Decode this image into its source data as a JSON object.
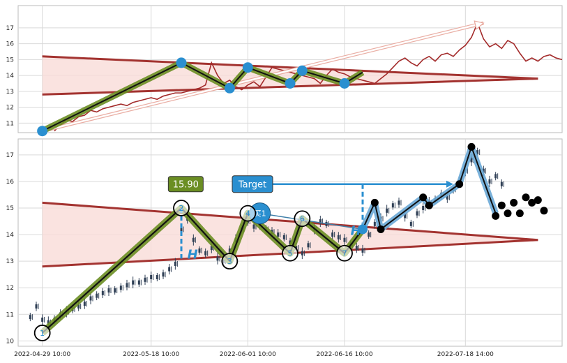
{
  "chart_data": [
    {
      "type": "line",
      "panel": "overview",
      "ylim": [
        10.4,
        18.4
      ],
      "yticks": [
        11,
        12,
        13,
        14,
        15,
        16,
        17
      ],
      "x_range": [
        -2,
        88
      ],
      "grid": true,
      "colors": {
        "price": "#a32a2a",
        "wedge_fill": "#f9dcd8",
        "wedge_line": "#a33330",
        "zigzag_outer": "#6b8e23",
        "zigzag_inner": "#111111",
        "pivot": "#2a8fd0",
        "arrow": "#e8a79c"
      },
      "price_series": [
        [
          4,
          10.5
        ],
        [
          5,
          10.9
        ],
        [
          6,
          11.2
        ],
        [
          7,
          11.1
        ],
        [
          8,
          11.4
        ],
        [
          9,
          11.5
        ],
        [
          10,
          11.8
        ],
        [
          11,
          11.7
        ],
        [
          12,
          11.9
        ],
        [
          13,
          12.0
        ],
        [
          14,
          12.1
        ],
        [
          15,
          12.2
        ],
        [
          16,
          12.1
        ],
        [
          17,
          12.3
        ],
        [
          18,
          12.4
        ],
        [
          19,
          12.5
        ],
        [
          20,
          12.6
        ],
        [
          21,
          12.5
        ],
        [
          22,
          12.7
        ],
        [
          23,
          12.8
        ],
        [
          24,
          12.9
        ],
        [
          25,
          12.9
        ],
        [
          26,
          13.0
        ],
        [
          27,
          13.1
        ],
        [
          28,
          13.2
        ],
        [
          29,
          13.4
        ],
        [
          30,
          14.8
        ],
        [
          31,
          14.0
        ],
        [
          32,
          13.5
        ],
        [
          33,
          13.7
        ],
        [
          34,
          13.3
        ],
        [
          35,
          13.1
        ],
        [
          36,
          13.4
        ],
        [
          37,
          13.6
        ],
        [
          38,
          13.3
        ],
        [
          39,
          13.9
        ],
        [
          40,
          14.5
        ],
        [
          41,
          14.4
        ],
        [
          42,
          14.3
        ],
        [
          43,
          14.2
        ],
        [
          44,
          14.1
        ],
        [
          45,
          14.0
        ],
        [
          46,
          13.9
        ],
        [
          47,
          13.8
        ],
        [
          48,
          13.5
        ],
        [
          49,
          14.0
        ],
        [
          50,
          14.4
        ],
        [
          51,
          14.2
        ],
        [
          52,
          14.1
        ],
        [
          53,
          13.9
        ],
        [
          54,
          13.8
        ],
        [
          55,
          13.7
        ],
        [
          56,
          13.6
        ],
        [
          57,
          13.5
        ],
        [
          58,
          13.8
        ],
        [
          59,
          14.1
        ],
        [
          60,
          14.5
        ],
        [
          61,
          14.9
        ],
        [
          62,
          15.1
        ],
        [
          63,
          14.8
        ],
        [
          64,
          14.6
        ],
        [
          65,
          15.0
        ],
        [
          66,
          15.2
        ],
        [
          67,
          14.9
        ],
        [
          68,
          15.3
        ],
        [
          69,
          15.4
        ],
        [
          70,
          15.2
        ],
        [
          71,
          15.6
        ],
        [
          72,
          15.9
        ],
        [
          73,
          16.4
        ],
        [
          74,
          17.3
        ],
        [
          75,
          16.3
        ],
        [
          76,
          15.8
        ],
        [
          77,
          16.0
        ],
        [
          78,
          15.7
        ],
        [
          79,
          16.2
        ],
        [
          80,
          16.0
        ],
        [
          81,
          15.4
        ],
        [
          82,
          14.9
        ],
        [
          83,
          15.1
        ],
        [
          84,
          14.9
        ],
        [
          85,
          15.2
        ],
        [
          86,
          15.3
        ],
        [
          87,
          15.1
        ],
        [
          88,
          15.0
        ]
      ],
      "wedge_upper": [
        [
          2,
          15.2
        ],
        [
          84,
          13.8
        ]
      ],
      "wedge_lower": [
        [
          2,
          12.8
        ],
        [
          84,
          13.8
        ]
      ],
      "zigzag": [
        [
          2,
          10.5
        ],
        [
          25,
          14.8
        ],
        [
          33,
          13.2
        ],
        [
          36,
          14.5
        ],
        [
          43,
          13.5
        ],
        [
          45,
          14.3
        ],
        [
          52,
          13.5
        ],
        [
          55,
          14.2
        ]
      ],
      "pivots": [
        [
          2,
          10.5
        ],
        [
          25,
          14.8
        ],
        [
          33,
          13.2
        ],
        [
          36,
          14.5
        ],
        [
          43,
          13.5
        ],
        [
          45,
          14.3
        ],
        [
          52,
          13.5
        ]
      ],
      "arrow": {
        "from": [
          2,
          10.5
        ],
        "to": [
          75,
          17.3
        ]
      }
    },
    {
      "type": "candlestick",
      "panel": "detail",
      "ylim": [
        9.8,
        17.6
      ],
      "yticks": [
        10,
        11,
        12,
        13,
        14,
        15,
        16,
        17
      ],
      "x_range": [
        -2,
        88
      ],
      "x_tick_labels": [
        "2022-04-29 10:00",
        "2022-05-18 10:00",
        "2022-06-01 10:00",
        "2022-06-16 10:00",
        "2022-07-18 14:00"
      ],
      "x_tick_positions": [
        2,
        20,
        36,
        52,
        72
      ],
      "grid": true,
      "colors": {
        "candle": "#2f3f55",
        "wedge_fill": "#f9dcd8",
        "wedge_line": "#a33330",
        "zigzag_outer": "#6b8e23",
        "zigzag_inner": "#111111",
        "label_box": "#6b8e23",
        "target_box": "#2a8fd0",
        "h_line": "#2a8fd0",
        "buy": "#2a8fd0",
        "proj_outer": "#6aa9d6",
        "proj_inner": "#111111",
        "future_dot": "#000000"
      },
      "candles": [
        [
          0,
          10.9
        ],
        [
          1,
          11.3
        ],
        [
          2,
          10.8
        ],
        [
          3,
          10.7
        ],
        [
          4,
          10.8
        ],
        [
          5,
          11.0
        ],
        [
          6,
          11.1
        ],
        [
          7,
          11.2
        ],
        [
          8,
          11.3
        ],
        [
          9,
          11.4
        ],
        [
          10,
          11.6
        ],
        [
          11,
          11.7
        ],
        [
          12,
          11.8
        ],
        [
          13,
          11.9
        ],
        [
          14,
          11.9
        ],
        [
          15,
          12.0
        ],
        [
          16,
          12.1
        ],
        [
          17,
          12.2
        ],
        [
          18,
          12.2
        ],
        [
          19,
          12.3
        ],
        [
          20,
          12.4
        ],
        [
          21,
          12.4
        ],
        [
          22,
          12.5
        ],
        [
          23,
          12.7
        ],
        [
          24,
          12.9
        ],
        [
          25,
          14.2
        ],
        [
          26,
          14.6
        ],
        [
          27,
          13.8
        ],
        [
          28,
          13.4
        ],
        [
          29,
          13.3
        ],
        [
          30,
          13.5
        ],
        [
          31,
          13.1
        ],
        [
          32,
          13.0
        ],
        [
          33,
          13.4
        ],
        [
          34,
          13.8
        ],
        [
          35,
          14.2
        ],
        [
          36,
          14.5
        ],
        [
          37,
          14.3
        ],
        [
          38,
          14.4
        ],
        [
          39,
          14.2
        ],
        [
          40,
          14.1
        ],
        [
          41,
          14.0
        ],
        [
          42,
          13.9
        ],
        [
          43,
          13.7
        ],
        [
          44,
          13.5
        ],
        [
          45,
          13.3
        ],
        [
          46,
          13.6
        ],
        [
          47,
          14.2
        ],
        [
          48,
          14.5
        ],
        [
          49,
          14.4
        ],
        [
          50,
          14.0
        ],
        [
          51,
          13.9
        ],
        [
          52,
          13.8
        ],
        [
          53,
          13.6
        ],
        [
          54,
          13.5
        ],
        [
          55,
          13.4
        ],
        [
          56,
          14.0
        ],
        [
          57,
          14.4
        ],
        [
          58,
          14.6
        ],
        [
          59,
          14.9
        ],
        [
          60,
          15.1
        ],
        [
          61,
          15.2
        ],
        [
          62,
          14.7
        ],
        [
          63,
          14.4
        ],
        [
          64,
          14.8
        ],
        [
          65,
          15.0
        ],
        [
          66,
          15.2
        ],
        [
          67,
          15.3
        ],
        [
          68,
          15.5
        ],
        [
          69,
          15.4
        ],
        [
          70,
          15.7
        ],
        [
          71,
          16.0
        ],
        [
          72,
          16.4
        ],
        [
          73,
          16.8
        ],
        [
          74,
          17.1
        ],
        [
          75,
          16.4
        ],
        [
          76,
          16.0
        ],
        [
          77,
          16.2
        ],
        [
          78,
          15.9
        ]
      ],
      "wedge_upper": [
        [
          2,
          15.2
        ],
        [
          84,
          13.8
        ]
      ],
      "wedge_lower": [
        [
          2,
          12.8
        ],
        [
          84,
          13.8
        ]
      ],
      "zigzag": [
        [
          2,
          10.3
        ],
        [
          25,
          15.0
        ],
        [
          33,
          13.0
        ],
        [
          36,
          14.8
        ],
        [
          43,
          13.3
        ],
        [
          45,
          14.6
        ],
        [
          52,
          13.3
        ],
        [
          55,
          14.2
        ]
      ],
      "pivot_labels": [
        {
          "label": "1",
          "x": 2,
          "y": 10.3
        },
        {
          "label": "2",
          "x": 25,
          "y": 15.0
        },
        {
          "label": "3",
          "x": 33,
          "y": 13.0
        },
        {
          "label": "4",
          "x": 36,
          "y": 14.8
        },
        {
          "label": "5",
          "x": 43,
          "y": 13.3
        },
        {
          "label": "6",
          "x": 45,
          "y": 14.6
        },
        {
          "label": "7",
          "x": 52,
          "y": 13.3
        }
      ],
      "level_label": {
        "text": "15.90",
        "x": 24,
        "y": 15.9
      },
      "target": {
        "text": "Target",
        "x": 34,
        "y": 15.9,
        "arrow_to": [
          70,
          15.9
        ]
      },
      "buy": {
        "text": "买1",
        "x": 38,
        "y": 14.8,
        "to": [
          55,
          14.2
        ]
      },
      "h_markers": [
        {
          "text": "H",
          "x": 26,
          "line": [
            [
              25,
              15.0
            ],
            [
              25,
              13.1
            ]
          ],
          "y": 13.3
        },
        {
          "text": "H",
          "x": 53,
          "line": [
            [
              55,
              15.9
            ],
            [
              55,
              14.2
            ]
          ],
          "y": 14.2
        }
      ],
      "projection": [
        [
          55,
          14.2
        ],
        [
          57,
          15.2
        ],
        [
          58,
          14.2
        ],
        [
          65,
          15.4
        ],
        [
          66,
          15.1
        ],
        [
          71,
          15.9
        ],
        [
          73,
          17.3
        ],
        [
          77,
          14.8
        ]
      ],
      "future_dots": [
        [
          57,
          15.2
        ],
        [
          58,
          14.2
        ],
        [
          65,
          15.4
        ],
        [
          66,
          15.1
        ],
        [
          71,
          15.9
        ],
        [
          73,
          17.3
        ],
        [
          77,
          14.7
        ],
        [
          78,
          15.1
        ],
        [
          79,
          14.8
        ],
        [
          80,
          15.2
        ],
        [
          81,
          14.8
        ],
        [
          82,
          15.4
        ],
        [
          83,
          15.2
        ],
        [
          84,
          15.3
        ],
        [
          85,
          14.9
        ]
      ]
    }
  ]
}
